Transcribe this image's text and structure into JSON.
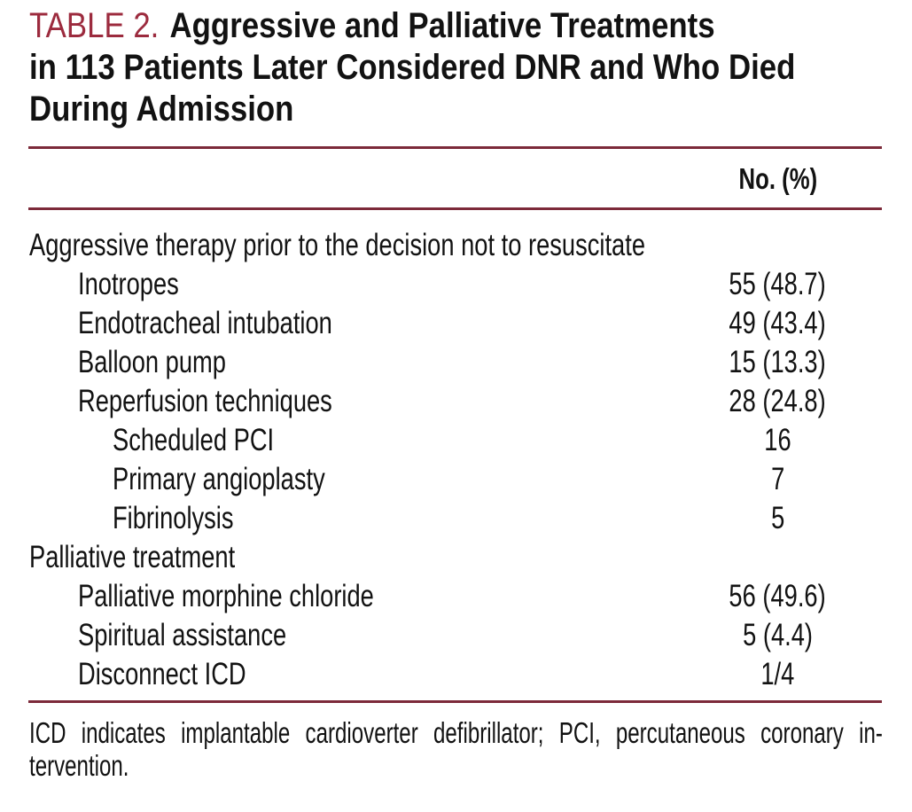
{
  "title": {
    "tag": "TABLE 2.",
    "lines": [
      "Aggressive and Palliative Treatments",
      "in 113 Patients Later Considered DNR and Who Died",
      "During Admission"
    ]
  },
  "table": {
    "value_column_header": "No. (%)",
    "rows": [
      {
        "label": "Aggressive therapy prior to the decision not to resuscitate",
        "indent": 0,
        "value": ""
      },
      {
        "label": "Inotropes",
        "indent": 1,
        "value": "55 (48.7)"
      },
      {
        "label": "Endotracheal intubation",
        "indent": 1,
        "value": "49 (43.4)"
      },
      {
        "label": "Balloon pump",
        "indent": 1,
        "value": "15 (13.3)"
      },
      {
        "label": "Reperfusion techniques",
        "indent": 1,
        "value": "28 (24.8)"
      },
      {
        "label": "Scheduled PCI",
        "indent": 2,
        "value": "16"
      },
      {
        "label": "Primary angioplasty",
        "indent": 2,
        "value": "7"
      },
      {
        "label": "Fibrinolysis",
        "indent": 2,
        "value": "5"
      },
      {
        "label": "Palliative treatment",
        "indent": 0,
        "value": ""
      },
      {
        "label": "Palliative morphine chloride",
        "indent": 1,
        "value": "56 (49.6)"
      },
      {
        "label": "Spiritual assistance",
        "indent": 1,
        "value": "5 (4.4)"
      },
      {
        "label": "Disconnect ICD",
        "indent": 1,
        "value": "1/4"
      }
    ]
  },
  "footnote": {
    "lines": [
      "ICD indicates implantable cardioverter defibrillator; PCI, percutaneous coronary in-",
      "tervention."
    ]
  },
  "colors": {
    "accent_red": "#9c2b3e",
    "rule": "#7c2a3a",
    "text": "#121212",
    "background": "#ffffff"
  }
}
